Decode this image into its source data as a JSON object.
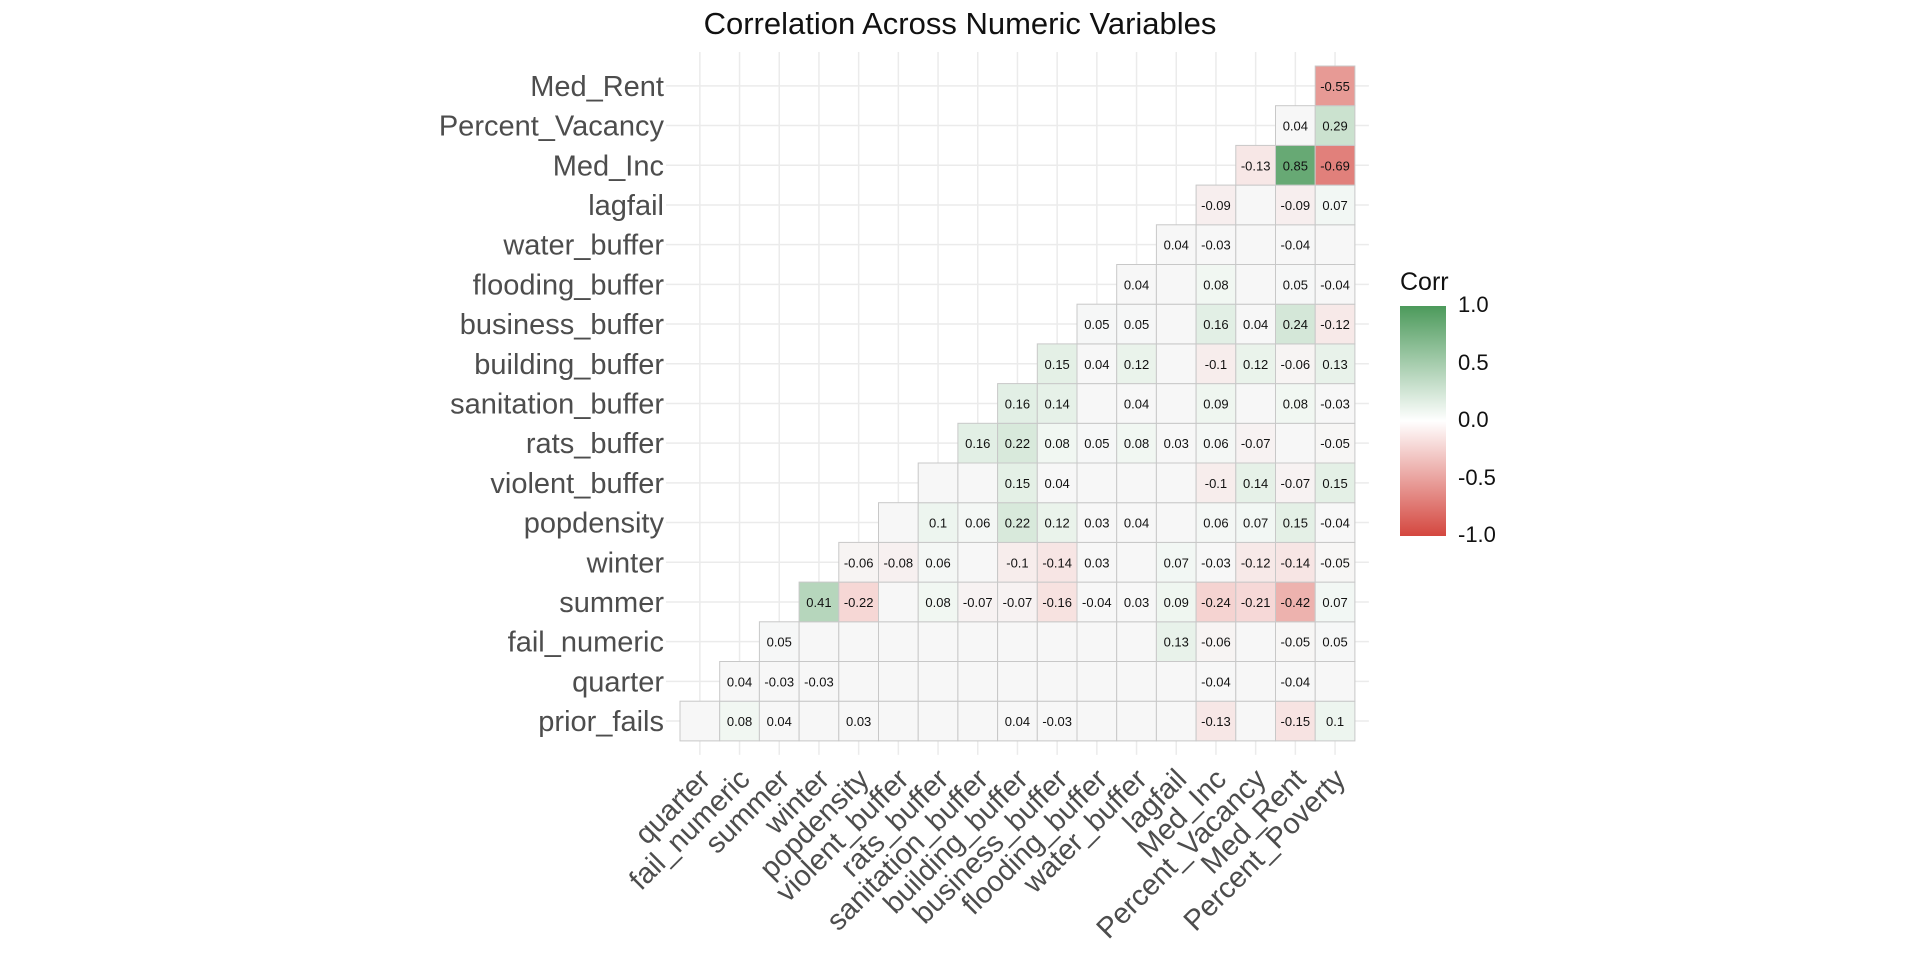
{
  "chart_data": {
    "type": "heatmap",
    "title": "Correlation Across Numeric Variables",
    "legend": {
      "title": "Corr",
      "position": "right",
      "ticks": [
        "1.0",
        "0.5",
        "0.0",
        "-0.5",
        "-1.0"
      ],
      "tick_values": [
        1,
        0.5,
        0,
        -0.5,
        -1
      ]
    },
    "color_scale": {
      "low": "#d4473f",
      "mid": "#ffffff",
      "high": "#4c9a5b",
      "limits": [
        -1,
        1
      ]
    },
    "grid": true,
    "y_categories": [
      "prior_fails",
      "quarter",
      "fail_numeric",
      "summer",
      "winter",
      "popdensity",
      "violent_buffer",
      "rats_buffer",
      "sanitation_buffer",
      "building_buffer",
      "business_buffer",
      "flooding_buffer",
      "water_buffer",
      "lagfail",
      "Med_Inc",
      "Percent_Vacancy",
      "Med_Rent"
    ],
    "x_categories": [
      "quarter",
      "fail_numeric",
      "summer",
      "winter",
      "popdensity",
      "violent_buffer",
      "rats_buffer",
      "sanitation_buffer",
      "building_buffer",
      "business_buffer",
      "flooding_buffer",
      "water_buffer",
      "lagfail",
      "Med_Inc",
      "Percent_Vacancy",
      "Med_Rent",
      "Percent_Poverty"
    ],
    "matrix": [
      [
        0.01,
        0.08,
        0.04,
        0.01,
        0.03,
        0.01,
        0.01,
        0.01,
        0.04,
        -0.03,
        0.01,
        0.01,
        0.01,
        -0.13,
        0.01,
        -0.15,
        0.1
      ],
      [
        null,
        0.04,
        -0.03,
        -0.03,
        0.01,
        0.01,
        0.01,
        0.01,
        0.01,
        0.01,
        0.01,
        0.01,
        0.01,
        -0.04,
        0.01,
        -0.04,
        0.01
      ],
      [
        null,
        null,
        0.05,
        0.01,
        0.01,
        0.01,
        0.01,
        0.01,
        0.01,
        0.01,
        0.01,
        0.01,
        0.13,
        -0.06,
        0.01,
        -0.05,
        0.05
      ],
      [
        null,
        null,
        null,
        0.41,
        -0.22,
        0.01,
        0.08,
        -0.07,
        -0.07,
        -0.16,
        -0.04,
        0.03,
        0.09,
        -0.24,
        -0.21,
        -0.42,
        0.07
      ],
      [
        null,
        null,
        null,
        null,
        -0.06,
        -0.08,
        0.06,
        0.01,
        -0.1,
        -0.14,
        0.03,
        0.01,
        0.07,
        -0.03,
        -0.12,
        -0.14,
        -0.05
      ],
      [
        null,
        null,
        null,
        null,
        null,
        0.01,
        0.1,
        0.06,
        0.22,
        0.12,
        0.03,
        0.04,
        0.01,
        0.06,
        0.07,
        0.15,
        -0.04
      ],
      [
        null,
        null,
        null,
        null,
        null,
        null,
        0.01,
        0.01,
        0.15,
        0.04,
        0.01,
        0.01,
        0.01,
        -0.1,
        0.14,
        -0.07,
        0.15
      ],
      [
        null,
        null,
        null,
        null,
        null,
        null,
        null,
        0.16,
        0.22,
        0.08,
        0.05,
        0.08,
        0.03,
        0.06,
        -0.07,
        0.01,
        -0.05
      ],
      [
        null,
        null,
        null,
        null,
        null,
        null,
        null,
        null,
        0.16,
        0.14,
        0.01,
        0.04,
        0.01,
        0.09,
        0.01,
        0.08,
        -0.03
      ],
      [
        null,
        null,
        null,
        null,
        null,
        null,
        null,
        null,
        null,
        0.15,
        0.04,
        0.12,
        0.01,
        -0.1,
        0.12,
        -0.06,
        0.13
      ],
      [
        null,
        null,
        null,
        null,
        null,
        null,
        null,
        null,
        null,
        null,
        0.05,
        0.05,
        0.01,
        0.16,
        0.04,
        0.24,
        -0.12
      ],
      [
        null,
        null,
        null,
        null,
        null,
        null,
        null,
        null,
        null,
        null,
        null,
        0.04,
        0.01,
        0.08,
        0.01,
        0.05,
        -0.04
      ],
      [
        null,
        null,
        null,
        null,
        null,
        null,
        null,
        null,
        null,
        null,
        null,
        null,
        0.04,
        -0.03,
        0.01,
        -0.04,
        0.01
      ],
      [
        null,
        null,
        null,
        null,
        null,
        null,
        null,
        null,
        null,
        null,
        null,
        null,
        null,
        -0.09,
        0.01,
        -0.09,
        0.07
      ],
      [
        null,
        null,
        null,
        null,
        null,
        null,
        null,
        null,
        null,
        null,
        null,
        null,
        null,
        null,
        -0.13,
        0.85,
        -0.69
      ],
      [
        null,
        null,
        null,
        null,
        null,
        null,
        null,
        null,
        null,
        null,
        null,
        null,
        null,
        null,
        null,
        0.04,
        0.29
      ],
      [
        null,
        null,
        null,
        null,
        null,
        null,
        null,
        null,
        null,
        null,
        null,
        null,
        null,
        null,
        null,
        null,
        -0.55
      ]
    ],
    "labels": [
      [
        "",
        "0.08",
        "0.04",
        "",
        "0.03",
        "",
        "",
        "",
        "0.04",
        "-0.03",
        "",
        "",
        "",
        "-0.13",
        "",
        "-0.15",
        "0.1"
      ],
      [
        "",
        "0.04",
        "-0.03",
        "-0.03",
        "",
        "",
        "",
        "",
        "",
        "",
        "",
        "",
        "",
        "-0.04",
        "",
        "-0.04",
        ""
      ],
      [
        "",
        "",
        "0.05",
        "",
        "",
        "",
        "",
        "",
        "",
        "",
        "",
        "",
        "0.13",
        "-0.06",
        "",
        "-0.05",
        "0.05"
      ],
      [
        "",
        "",
        "",
        "0.41",
        "-0.22",
        "",
        "0.08",
        "-0.07",
        "-0.07",
        "-0.16",
        "-0.04",
        "0.03",
        "0.09",
        "-0.24",
        "-0.21",
        "-0.42",
        "0.07"
      ],
      [
        "",
        "",
        "",
        "",
        "-0.06",
        "-0.08",
        "0.06",
        "",
        "-0.1",
        "-0.14",
        "0.03",
        "",
        "0.07",
        "-0.03",
        "-0.12",
        "-0.14",
        "-0.05"
      ],
      [
        "",
        "",
        "",
        "",
        "",
        "",
        "0.1",
        "0.06",
        "0.22",
        "0.12",
        "0.03",
        "0.04",
        "",
        "0.06",
        "0.07",
        "0.15",
        "-0.04"
      ],
      [
        "",
        "",
        "",
        "",
        "",
        "",
        "",
        "",
        "0.15",
        "0.04",
        "",
        "",
        "",
        "-0.1",
        "0.14",
        "-0.07",
        "0.15"
      ],
      [
        "",
        "",
        "",
        "",
        "",
        "",
        "",
        "0.16",
        "0.22",
        "0.08",
        "0.05",
        "0.08",
        "0.03",
        "0.06",
        "-0.07",
        "",
        "-0.05"
      ],
      [
        "",
        "",
        "",
        "",
        "",
        "",
        "",
        "",
        "0.16",
        "0.14",
        "",
        "0.04",
        "",
        "0.09",
        "",
        "0.08",
        "-0.03"
      ],
      [
        "",
        "",
        "",
        "",
        "",
        "",
        "",
        "",
        "",
        "0.15",
        "0.04",
        "0.12",
        "",
        "-0.1",
        "0.12",
        "-0.06",
        "0.13"
      ],
      [
        "",
        "",
        "",
        "",
        "",
        "",
        "",
        "",
        "",
        "",
        "0.05",
        "0.05",
        "",
        "0.16",
        "0.04",
        "0.24",
        "-0.12"
      ],
      [
        "",
        "",
        "",
        "",
        "",
        "",
        "",
        "",
        "",
        "",
        "",
        "0.04",
        "",
        "0.08",
        "",
        "0.05",
        "-0.04"
      ],
      [
        "",
        "",
        "",
        "",
        "",
        "",
        "",
        "",
        "",
        "",
        "",
        "",
        "0.04",
        "-0.03",
        "",
        "-0.04",
        ""
      ],
      [
        "",
        "",
        "",
        "",
        "",
        "",
        "",
        "",
        "",
        "",
        "",
        "",
        "",
        "-0.09",
        "",
        "-0.09",
        "0.07"
      ],
      [
        "",
        "",
        "",
        "",
        "",
        "",
        "",
        "",
        "",
        "",
        "",
        "",
        "",
        "",
        "-0.13",
        "0.85",
        "-0.69"
      ],
      [
        "",
        "",
        "",
        "",
        "",
        "",
        "",
        "",
        "",
        "",
        "",
        "",
        "",
        "",
        "",
        "0.04",
        "0.29"
      ],
      [
        "",
        "",
        "",
        "",
        "",
        "",
        "",
        "",
        "",
        "",
        "",
        "",
        "",
        "",
        "",
        "",
        "-0.55"
      ]
    ]
  }
}
